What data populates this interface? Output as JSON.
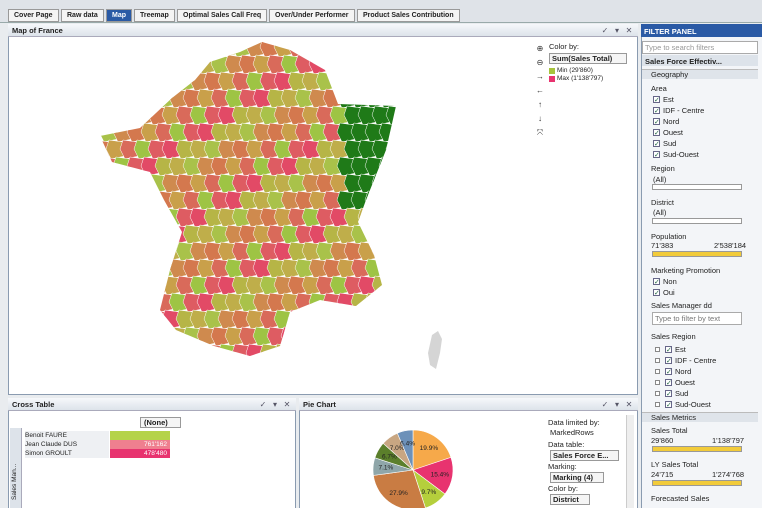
{
  "tabs": [
    "Cover Page",
    "Raw data",
    "Map",
    "Treemap",
    "Optimal Sales Call Freq",
    "Over/Under Performer",
    "Product Sales Contribution"
  ],
  "active_tab_index": 2,
  "map_panel": {
    "title": "Map of France",
    "color_by_label": "Color by:",
    "color_by": "Sum(Sales Total)",
    "legend": [
      {
        "label": "Min (29'860)",
        "color": "#a6c33c"
      },
      {
        "label": "Max (1'138'797)",
        "color": "#e8336f"
      }
    ]
  },
  "cross_table": {
    "title": "Cross Table",
    "column": "(None)",
    "side_label": "Sales Man...",
    "rows": [
      {
        "name": "Benoit FAURE",
        "color": "#b5d34a"
      },
      {
        "name": "Jean Claude DUS",
        "value": "761'162",
        "color": "#ef7f8f"
      },
      {
        "name": "Simon GROULT",
        "value": "478'480",
        "color": "#e8336f"
      }
    ]
  },
  "pie_panel": {
    "title": "Pie Chart",
    "slices": [
      {
        "value": 19.9,
        "label": "19.9%",
        "color": "#f6a94a"
      },
      {
        "value": 15.4,
        "label": "15.4%",
        "color": "#e8336f"
      },
      {
        "value": 9.7,
        "label": "9.7%",
        "color": "#b5cf3c"
      },
      {
        "value": 27.9,
        "label": "27.9%",
        "color": "#c97c43"
      },
      {
        "value": 7.1,
        "label": "7.1%",
        "color": "#8fa6a9"
      },
      {
        "value": 6.7,
        "label": "6.7%",
        "color": "#5b7f2b"
      },
      {
        "value": 7.0,
        "label": "7.0%",
        "color": "#c8a682"
      },
      {
        "value": 6.4,
        "label": "6.4%",
        "color": "#6d91b9"
      }
    ],
    "settings": [
      {
        "label": "Data limited by:",
        "value": "MarkedRows"
      },
      {
        "label": "Data table:",
        "value": "Sales Force E..."
      },
      {
        "label": "Marking:",
        "value": "Marking (4)"
      },
      {
        "label": "Color by:",
        "value": "District"
      }
    ]
  },
  "filter_panel": {
    "title": "FILTER PANEL",
    "search": "Type to search filters",
    "table": "Sales Force Effectiv...",
    "geography": "Geography",
    "area": {
      "label": "Area",
      "items": [
        "Est",
        "IDF - Centre",
        "Nord",
        "Ouest",
        "Sud",
        "Sud-Ouest"
      ]
    },
    "region": {
      "label": "Region",
      "value": "(All)"
    },
    "district": {
      "label": "District",
      "value": "(All)"
    },
    "population": {
      "label": "Population",
      "min": "71'383",
      "max": "2'538'184"
    },
    "marketing": {
      "label": "Marketing Promotion",
      "items": [
        "Non",
        "Oui"
      ]
    },
    "sales_manager": {
      "label": "Sales Manager dd",
      "placeholder": "Type to filter by text"
    },
    "sales_region": {
      "label": "Sales Region",
      "items": [
        "Est",
        "IDF - Centre",
        "Nord",
        "Ouest",
        "Sud",
        "Sud-Ouest"
      ]
    },
    "metrics": "Sales Metrics",
    "sales_total": {
      "label": "Sales Total",
      "min": "29'860",
      "max": "1'138'797"
    },
    "ly_sales_total": {
      "label": "LY Sales Total",
      "min": "24'715",
      "max": "1'274'768"
    },
    "forecast": {
      "label": "Forecasted Sales"
    }
  }
}
